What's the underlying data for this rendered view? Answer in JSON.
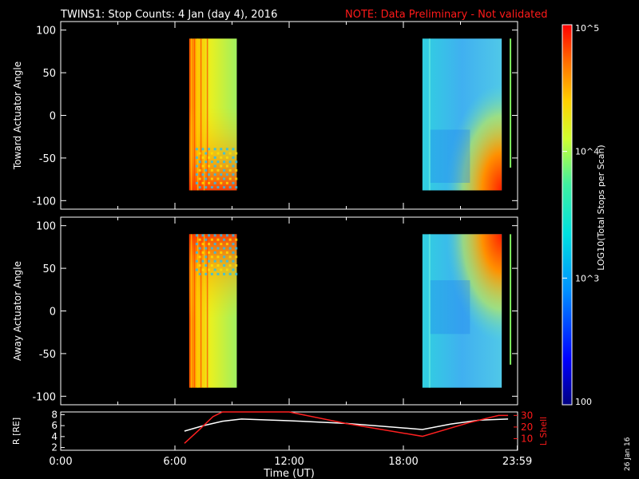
{
  "header": {
    "title": "TWINS1: Stop Counts:  4 Jan (day   4), 2016",
    "note": "NOTE: Data Preliminary - Not validated"
  },
  "colorbar": {
    "label": "LOG10(Total Stops per Scan)",
    "ticks": [
      "100",
      "10^3",
      "10^4",
      "10^5"
    ],
    "range": [
      100,
      100000
    ],
    "scale": "log"
  },
  "side_date": "26 Jan 16",
  "chart_data": [
    {
      "type": "heatmap",
      "panel": "toward",
      "ylabel": "Toward Actuator Angle",
      "ylim": [
        -110,
        110
      ],
      "yticks": [
        "100",
        "50",
        "0",
        "-50",
        "-100"
      ],
      "xlim_hours": [
        0,
        24
      ],
      "data_extent": {
        "y": [
          -88,
          90
        ]
      },
      "blocks": [
        {
          "x_start": "6:45",
          "x_end": "9:15",
          "level": "high"
        },
        {
          "x_start": "19:00",
          "x_end": "23:10",
          "level": "low"
        }
      ],
      "thin_strip_x": "23:35"
    },
    {
      "type": "heatmap",
      "panel": "away",
      "ylabel": "Away Actuator Angle",
      "ylim": [
        -110,
        110
      ],
      "yticks": [
        "100",
        "50",
        "0",
        "-50",
        "-100"
      ],
      "xlim_hours": [
        0,
        24
      ],
      "data_extent": {
        "y": [
          -90,
          90
        ]
      },
      "blocks": [
        {
          "x_start": "6:45",
          "x_end": "9:15",
          "level": "high"
        },
        {
          "x_start": "19:00",
          "x_end": "23:10",
          "level": "low"
        }
      ],
      "thin_strip_x": "23:35"
    },
    {
      "type": "line",
      "panel": "orbit",
      "ylabel": "R [RE]",
      "ylabel_right": "L Shell",
      "xlabel": "Time (UT)",
      "xticks": [
        "0:00",
        "6:00",
        "12:00",
        "18:00",
        "23:59"
      ],
      "yticks_left": [
        "2",
        "4",
        "6",
        "8"
      ],
      "yticks_right": [
        "10",
        "20",
        "30"
      ],
      "ylim_left": [
        1.5,
        8.5
      ],
      "ylim_right": [
        0,
        33
      ],
      "series": [
        {
          "axis": "left",
          "color": "#ffffff",
          "x": [
            6.5,
            7.5,
            8.5,
            9.5,
            12,
            15,
            19,
            20.5,
            22,
            23.5
          ],
          "y": [
            5.0,
            6.0,
            6.8,
            7.2,
            6.9,
            6.4,
            5.3,
            6.3,
            7.0,
            7.2
          ]
        },
        {
          "axis": "right",
          "color": "#ff2020",
          "x": [
            6.5,
            7.3,
            8.0,
            8.5,
            12,
            15,
            19,
            21.5,
            23,
            23.5
          ],
          "y": [
            6,
            18,
            29,
            33,
            33,
            23,
            12,
            24,
            30,
            30
          ]
        }
      ]
    }
  ]
}
